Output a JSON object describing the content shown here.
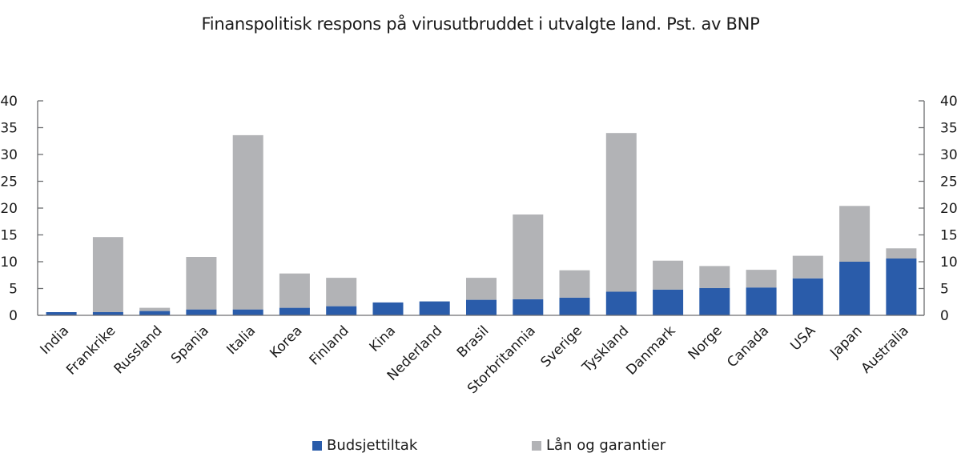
{
  "chart_data": {
    "type": "bar",
    "stacked": true,
    "title": "Finanspolitisk respons på virusutbruddet i utvalgte land. Pst. av BNP",
    "xlabel": "",
    "ylabel": "",
    "ylim": [
      0,
      40
    ],
    "yticks": [
      "0",
      "5",
      "10",
      "15",
      "20",
      "25",
      "30",
      "35",
      "40"
    ],
    "ytick_values": [
      0,
      5,
      10,
      15,
      20,
      25,
      30,
      35,
      40
    ],
    "grid": false,
    "legend_position": "bottom",
    "categories": [
      "India",
      "Frankrike",
      "Russland",
      "Spania",
      "Italia",
      "Korea",
      "Finland",
      "Kina",
      "Nederland",
      "Brasil",
      "Storbritannia",
      "Sverige",
      "Tyskland",
      "Danmark",
      "Norge",
      "Canada",
      "USA",
      "Japan",
      "Australia"
    ],
    "series": [
      {
        "name": "Budsjettiltak",
        "color": "#2a5caa",
        "values": [
          0.6,
          0.6,
          0.8,
          1.1,
          1.1,
          1.4,
          1.7,
          2.4,
          2.6,
          2.9,
          3.0,
          3.3,
          4.4,
          4.8,
          5.1,
          5.2,
          6.9,
          10.0,
          10.6
        ]
      },
      {
        "name": "Lån og garantier",
        "color": "#b2b3b6",
        "values": [
          0.0,
          14.0,
          0.6,
          9.8,
          32.5,
          6.4,
          5.3,
          0.0,
          0.0,
          4.1,
          15.8,
          5.1,
          29.6,
          5.4,
          4.1,
          3.3,
          4.2,
          10.4,
          1.9
        ]
      }
    ]
  }
}
